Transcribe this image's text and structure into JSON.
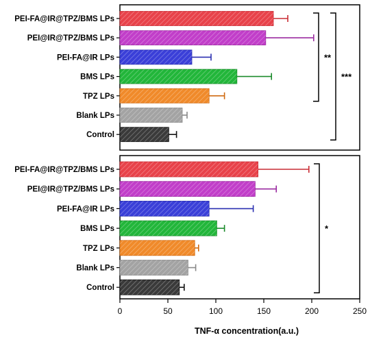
{
  "chart_data": [
    {
      "type": "bar",
      "orientation": "horizontal",
      "panel": "top",
      "categories": [
        "PEI-FA@IR@TPZ/BMS LPs",
        "PEI@IR@TPZ/BMS LPs",
        "PEI-FA@IR LPs",
        "BMS LPs",
        "TPZ LPs",
        "Blank LPs",
        "Control"
      ],
      "values": [
        160,
        152,
        75,
        122,
        93,
        65,
        51
      ],
      "errors": [
        15,
        50,
        20,
        36,
        16,
        5,
        8
      ],
      "xlim": [
        0,
        250
      ],
      "significance": [
        {
          "label": "**",
          "from": "PEI-FA@IR@TPZ/BMS LPs",
          "to": "TPZ LPs"
        },
        {
          "label": "***",
          "from": "PEI-FA@IR@TPZ/BMS LPs",
          "to": "Control"
        }
      ]
    },
    {
      "type": "bar",
      "orientation": "horizontal",
      "panel": "bottom",
      "categories": [
        "PEI-FA@IR@TPZ/BMS LPs",
        "PEI@IR@TPZ/BMS LPs",
        "PEI-FA@IR LPs",
        "BMS LPs",
        "TPZ LPs",
        "Blank LPs",
        "Control"
      ],
      "values": [
        144,
        141,
        93,
        101,
        78,
        71,
        62
      ],
      "errors": [
        53,
        22,
        46,
        8,
        4,
        8,
        5
      ],
      "xlim": [
        0,
        250
      ],
      "xticks": [
        0,
        50,
        100,
        150,
        200,
        250
      ],
      "xlabel": "TNF-α concentration(a.u.)",
      "significance": [
        {
          "label": "*",
          "from": "PEI-FA@IR@TPZ/BMS LPs",
          "to": "Control"
        }
      ]
    }
  ],
  "colors": {
    "bars": [
      "#e8424a",
      "#c13ec9",
      "#3a3fd8",
      "#22b63a",
      "#f08a2a",
      "#a3a3a3",
      "#3a3a3a"
    ],
    "errors": [
      "#c92b33",
      "#9a2aa0",
      "#2a2fb0",
      "#1a8a2a",
      "#d06a10",
      "#888888",
      "#111111"
    ]
  }
}
